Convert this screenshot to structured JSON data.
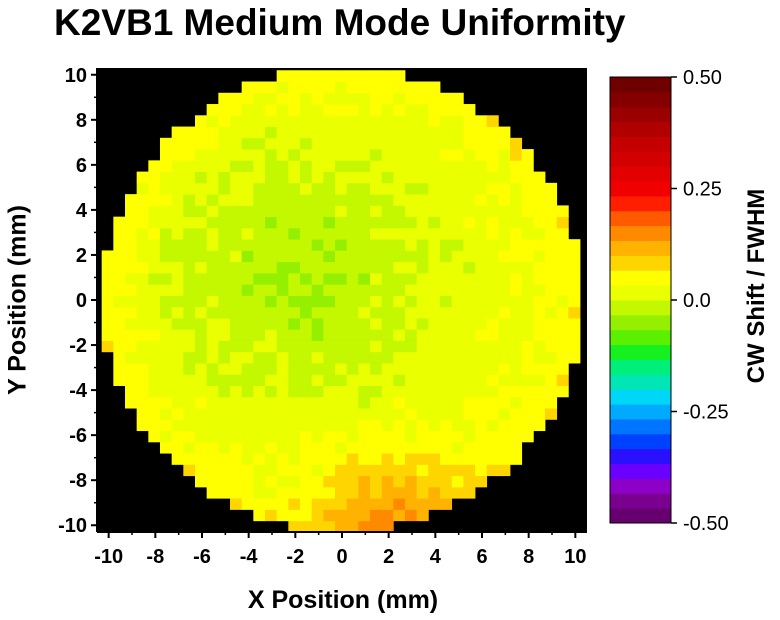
{
  "chart_data": {
    "type": "heatmap",
    "title": "K2VB1 Medium Mode Uniformity",
    "xlabel": "X Position (mm)",
    "ylabel": "Y Position (mm)",
    "xlim": [
      -10.5,
      10.5
    ],
    "ylim": [
      -10.3,
      10.3
    ],
    "x_ticks": [
      "-10",
      "-8",
      "-6",
      "-4",
      "-2",
      "0",
      "2",
      "4",
      "6",
      "8",
      "10"
    ],
    "y_ticks": [
      "10",
      "8",
      "6",
      "4",
      "2",
      "0",
      "-2",
      "-4",
      "-6",
      "-8",
      "-10"
    ],
    "background_color": "#000000",
    "wafer_radius": 10.3,
    "field": {
      "base": 0.03,
      "center_dip": {
        "x": -1.6,
        "y": 1.2,
        "amplitude": -0.06,
        "width": 4.2
      },
      "bottom_edge_rise": {
        "center": [
          2.0,
          -9.8
        ],
        "amplitude": 0.09,
        "width": 2.2
      },
      "rim_rise": 0.03
    },
    "colorbar": {
      "label": "CW Shift / FWHM",
      "range": [
        -0.5,
        0.5
      ],
      "tick_labels": [
        "0.50",
        "0.25",
        "0.0",
        "-0.25",
        "-0.50"
      ],
      "tick_values": [
        0.5,
        0.25,
        0.0,
        -0.25,
        -0.5
      ],
      "colors": [
        "#66006e",
        "#7a0090",
        "#8c00c8",
        "#6a00ff",
        "#2a10ff",
        "#0040ff",
        "#0075ff",
        "#00aaff",
        "#00d6f6",
        "#00e6b5",
        "#00ee7a",
        "#15f020",
        "#5bf000",
        "#94f000",
        "#c3f800",
        "#eaff00",
        "#ffff00",
        "#ffd500",
        "#ffb300",
        "#ff8a00",
        "#ff5a00",
        "#ff1e00",
        "#f00000",
        "#e20000",
        "#d20000",
        "#c40000",
        "#b00000",
        "#9a0000",
        "#840000",
        "#6e0000"
      ]
    }
  }
}
